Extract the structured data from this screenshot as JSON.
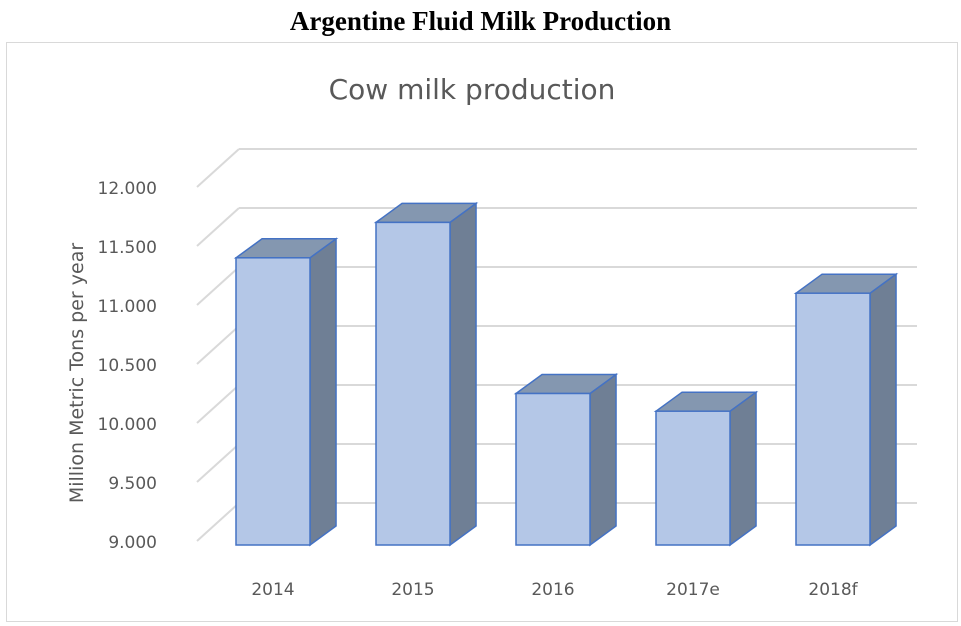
{
  "page_title": "Argentine Fluid Milk Production",
  "chart_data": {
    "type": "bar",
    "style": "3d-column",
    "title": "Cow milk production",
    "xlabel": "",
    "ylabel": "Million Metric Tons per year",
    "categories": [
      "2014",
      "2015",
      "2016",
      "2017e",
      "2018f"
    ],
    "values": [
      11.4,
      11.7,
      10.25,
      10.1,
      11.1
    ],
    "ylim": [
      9.0,
      12.0
    ],
    "yticks": [
      "9.000",
      "9.500",
      "10.000",
      "10.500",
      "11.000",
      "11.500",
      "12.000"
    ],
    "grid": true,
    "colors": {
      "bar_front": "#b4c7e7",
      "bar_side": "#6f7f95",
      "bar_top": "#8497b0",
      "bar_edge": "#4472c4",
      "grid": "#d9d9d9",
      "text": "#595959"
    }
  }
}
